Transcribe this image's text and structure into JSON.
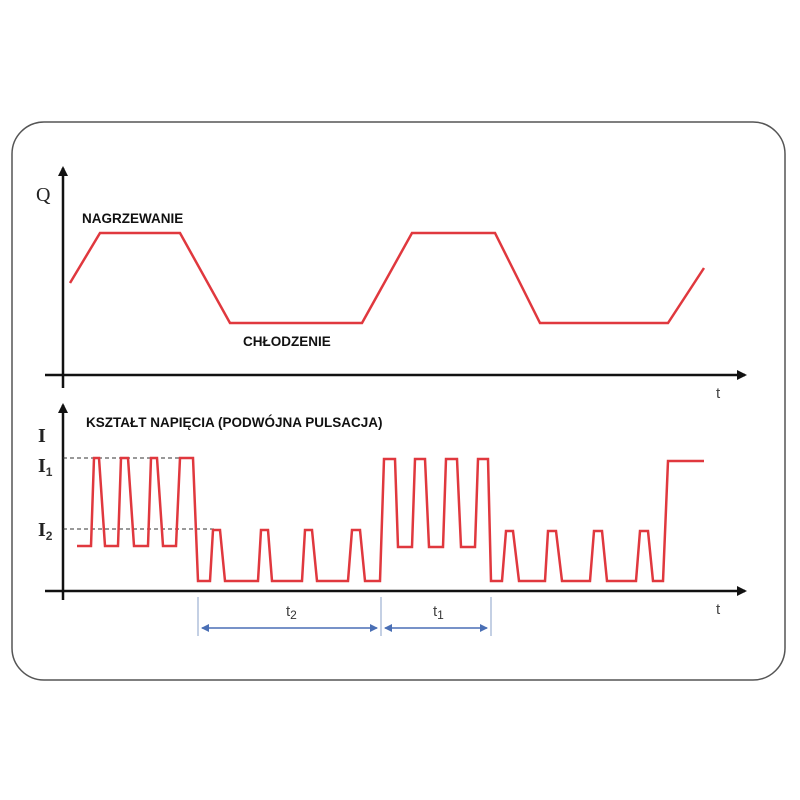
{
  "colors": {
    "signal": "#e0383e",
    "axis": "#111111",
    "dimension": "#4a6fb5",
    "frame": "#555555"
  },
  "top_panel": {
    "y_axis_label": "Q",
    "x_axis_label": "t",
    "heating_label": "NAGRZEWANIE",
    "cooling_label": "CHŁODZENIE"
  },
  "bottom_panel": {
    "title": "KSZTAŁT NAPIĘCIA (PODWÓJNA PULSACJA)",
    "y_axis_label": "I",
    "level_1": {
      "main": "I",
      "sub": "1"
    },
    "level_2": {
      "main": "I",
      "sub": "2"
    },
    "x_axis_label": "t",
    "period_2": {
      "main": "t",
      "sub": "2"
    },
    "period_1": {
      "main": "t",
      "sub": "1"
    }
  }
}
